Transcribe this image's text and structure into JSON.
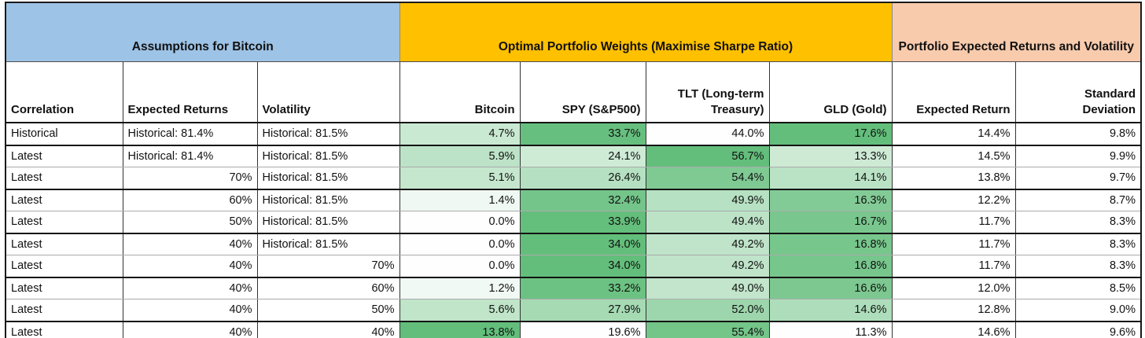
{
  "accent_colors": {
    "assumptions_band": "#9DC3E6",
    "weights_band": "#FFC000",
    "portfolio_band": "#F8CBAD",
    "scale_green_max": "#63BE7B",
    "scale_white_min": "#FDFEFD",
    "grid_thick_border": "#141414",
    "grid_thin_border": "#ABABAB"
  },
  "table": {
    "groups": [
      {
        "title": "Assumptions for Bitcoin",
        "color": "#9DC3E6",
        "span": 3
      },
      {
        "title": "Optimal Portfolio Weights (Maximise Sharpe Ratio)",
        "color": "#FFC000",
        "span": 4
      },
      {
        "title": "Portfolio Expected Returns and Volatility",
        "color": "#F8CBAD",
        "span": 2
      }
    ],
    "columns": [
      {
        "label": "Correlation",
        "align": "left"
      },
      {
        "label": "Expected Returns",
        "align": "left"
      },
      {
        "label": "Volatility",
        "align": "left"
      },
      {
        "label": "Bitcoin",
        "align": "right"
      },
      {
        "label": "SPY (S&P500)",
        "align": "right"
      },
      {
        "label": "TLT (Long-term Treasury)",
        "align": "right"
      },
      {
        "label": "GLD (Gold)",
        "align": "right"
      },
      {
        "label": "Expected Return",
        "align": "right"
      },
      {
        "label": "Standard Deviation",
        "align": "right"
      }
    ],
    "rows": [
      {
        "cells": [
          {
            "t": "Historical",
            "a": "l"
          },
          {
            "t": "Historical: 81.4%",
            "a": "l"
          },
          {
            "t": "Historical: 81.5%",
            "a": "l"
          },
          {
            "t": "4.7%",
            "a": "r",
            "f": "#CAE9D2"
          },
          {
            "t": "33.7%",
            "a": "r",
            "f": "#66BF7E"
          },
          {
            "t": "44.0%",
            "a": "r",
            "f": "#FDFEFD"
          },
          {
            "t": "17.6%",
            "a": "r",
            "f": "#63BE7B"
          },
          {
            "t": "14.4%",
            "a": "r"
          },
          {
            "t": "9.8%",
            "a": "r"
          }
        ]
      },
      {
        "cells": [
          {
            "t": "Latest",
            "a": "l"
          },
          {
            "t": "Historical: 81.4%",
            "a": "l"
          },
          {
            "t": "Historical: 81.5%",
            "a": "l"
          },
          {
            "t": "5.9%",
            "a": "r",
            "f": "#BCE3C7"
          },
          {
            "t": "24.1%",
            "a": "r",
            "f": "#CEEBD6"
          },
          {
            "t": "56.7%",
            "a": "r",
            "f": "#63BE7B"
          },
          {
            "t": "13.3%",
            "a": "r",
            "f": "#CEEAD5"
          },
          {
            "t": "14.5%",
            "a": "r"
          },
          {
            "t": "9.9%",
            "a": "r"
          }
        ]
      },
      {
        "cells": [
          {
            "t": "Latest",
            "a": "l"
          },
          {
            "t": "70%",
            "a": "r"
          },
          {
            "t": "Historical: 81.5%",
            "a": "l"
          },
          {
            "t": "5.1%",
            "a": "r",
            "f": "#C5E7CE"
          },
          {
            "t": "26.4%",
            "a": "r",
            "f": "#B5E0C1"
          },
          {
            "t": "54.4%",
            "a": "r",
            "f": "#7FCA93"
          },
          {
            "t": "14.1%",
            "a": "r",
            "f": "#BAE2C4"
          },
          {
            "t": "13.8%",
            "a": "r"
          },
          {
            "t": "9.7%",
            "a": "r"
          }
        ]
      },
      {
        "cells": [
          {
            "t": "Latest",
            "a": "l"
          },
          {
            "t": "60%",
            "a": "r"
          },
          {
            "t": "Historical: 81.5%",
            "a": "l"
          },
          {
            "t": "1.4%",
            "a": "r",
            "f": "#EFF8F2"
          },
          {
            "t": "32.4%",
            "a": "r",
            "f": "#74C58A"
          },
          {
            "t": "49.9%",
            "a": "r",
            "f": "#B6E1C2"
          },
          {
            "t": "16.3%",
            "a": "r",
            "f": "#83CB96"
          },
          {
            "t": "12.2%",
            "a": "r"
          },
          {
            "t": "8.7%",
            "a": "r"
          }
        ]
      },
      {
        "cells": [
          {
            "t": "Latest",
            "a": "l"
          },
          {
            "t": "50%",
            "a": "r"
          },
          {
            "t": "Historical: 81.5%",
            "a": "l"
          },
          {
            "t": "0.0%",
            "a": "r",
            "f": "#FDFEFD"
          },
          {
            "t": "33.9%",
            "a": "r",
            "f": "#64BE7C"
          },
          {
            "t": "49.4%",
            "a": "r",
            "f": "#BDE3C7"
          },
          {
            "t": "16.7%",
            "a": "r",
            "f": "#79C78E"
          },
          {
            "t": "11.7%",
            "a": "r"
          },
          {
            "t": "8.3%",
            "a": "r"
          }
        ]
      },
      {
        "cells": [
          {
            "t": "Latest",
            "a": "l"
          },
          {
            "t": "40%",
            "a": "r"
          },
          {
            "t": "Historical: 81.5%",
            "a": "l"
          },
          {
            "t": "0.0%",
            "a": "r",
            "f": "#FDFEFD"
          },
          {
            "t": "34.0%",
            "a": "r",
            "f": "#63BE7B"
          },
          {
            "t": "49.2%",
            "a": "r",
            "f": "#BFE4C9"
          },
          {
            "t": "16.8%",
            "a": "r",
            "f": "#77C68C"
          },
          {
            "t": "11.7%",
            "a": "r"
          },
          {
            "t": "8.3%",
            "a": "r"
          }
        ]
      },
      {
        "cells": [
          {
            "t": "Latest",
            "a": "l"
          },
          {
            "t": "40%",
            "a": "r"
          },
          {
            "t": "70%",
            "a": "r"
          },
          {
            "t": "0.0%",
            "a": "r",
            "f": "#FDFEFD"
          },
          {
            "t": "34.0%",
            "a": "r",
            "f": "#63BE7B"
          },
          {
            "t": "49.2%",
            "a": "r",
            "f": "#BFE4C9"
          },
          {
            "t": "16.8%",
            "a": "r",
            "f": "#77C68C"
          },
          {
            "t": "11.7%",
            "a": "r"
          },
          {
            "t": "8.3%",
            "a": "r"
          }
        ]
      },
      {
        "cells": [
          {
            "t": "Latest",
            "a": "l"
          },
          {
            "t": "40%",
            "a": "r"
          },
          {
            "t": "60%",
            "a": "r"
          },
          {
            "t": "1.2%",
            "a": "r",
            "f": "#F1F9F4"
          },
          {
            "t": "33.2%",
            "a": "r",
            "f": "#6CC282"
          },
          {
            "t": "49.0%",
            "a": "r",
            "f": "#C2E5CB"
          },
          {
            "t": "16.6%",
            "a": "r",
            "f": "#7CC890"
          },
          {
            "t": "12.0%",
            "a": "r"
          },
          {
            "t": "8.5%",
            "a": "r"
          }
        ]
      },
      {
        "cells": [
          {
            "t": "Latest",
            "a": "l"
          },
          {
            "t": "40%",
            "a": "r"
          },
          {
            "t": "50%",
            "a": "r"
          },
          {
            "t": "5.6%",
            "a": "r",
            "f": "#C0E5C9"
          },
          {
            "t": "27.9%",
            "a": "r",
            "f": "#A5DAB3"
          },
          {
            "t": "52.0%",
            "a": "r",
            "f": "#9DD6AC"
          },
          {
            "t": "14.6%",
            "a": "r",
            "f": "#ADDDBA"
          },
          {
            "t": "12.8%",
            "a": "r"
          },
          {
            "t": "9.0%",
            "a": "r"
          }
        ]
      },
      {
        "cells": [
          {
            "t": "Latest",
            "a": "l"
          },
          {
            "t": "40%",
            "a": "r"
          },
          {
            "t": "40%",
            "a": "r"
          },
          {
            "t": "13.8%",
            "a": "r",
            "f": "#63BE7B"
          },
          {
            "t": "19.6%",
            "a": "r",
            "f": "#FDFEFD"
          },
          {
            "t": "55.4%",
            "a": "r",
            "f": "#73C588"
          },
          {
            "t": "11.3%",
            "a": "r",
            "f": "#FDFEFD"
          },
          {
            "t": "14.6%",
            "a": "r"
          },
          {
            "t": "9.6%",
            "a": "r"
          }
        ]
      }
    ]
  }
}
